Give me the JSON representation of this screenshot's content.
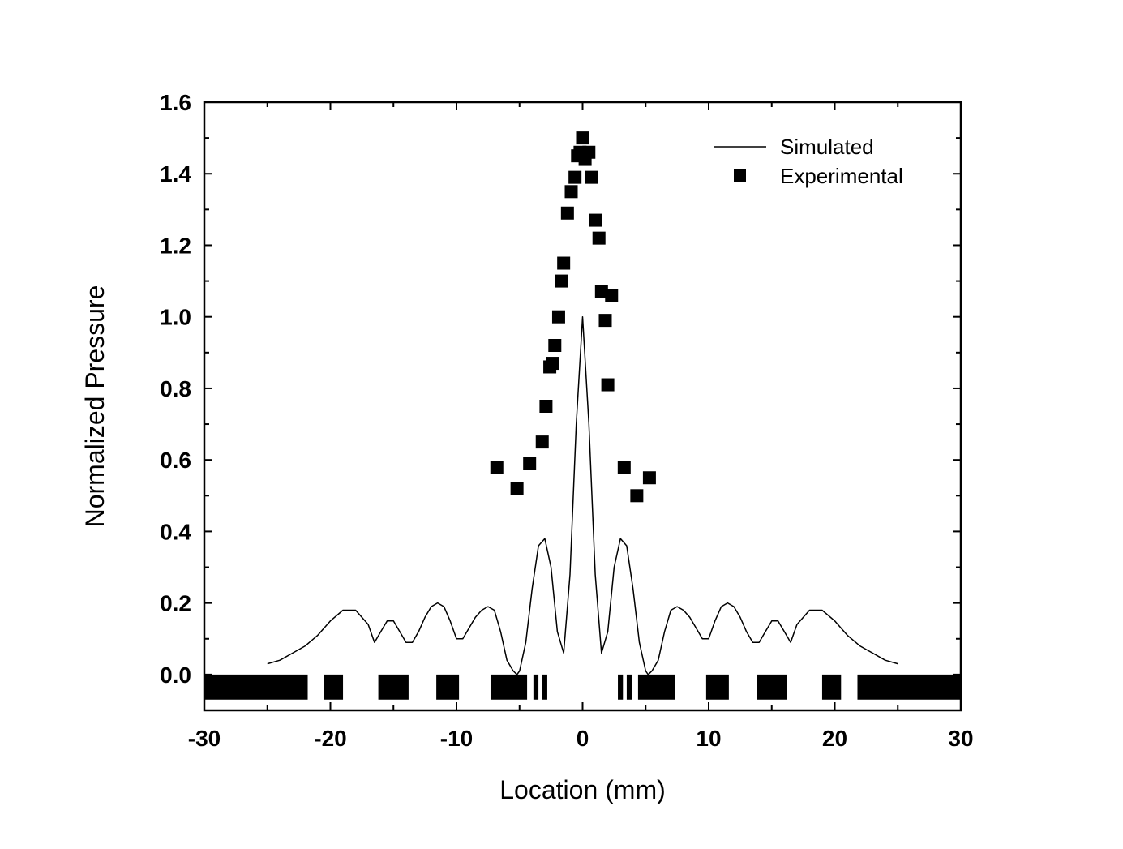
{
  "chart_data": {
    "type": "line",
    "title": "",
    "xlabel": "Location (mm)",
    "ylabel": "Normalized Pressure",
    "xlim": [
      -30,
      30
    ],
    "ylim": [
      -0.1,
      1.6
    ],
    "xticks": [
      -30,
      -20,
      -10,
      0,
      10,
      20,
      30
    ],
    "xtick_labels": [
      "-30",
      "-20",
      "-10",
      "0",
      "10",
      "20",
      "30"
    ],
    "yticks": [
      0.0,
      0.2,
      0.4,
      0.6,
      0.8,
      1.0,
      1.2,
      1.4,
      1.6
    ],
    "ytick_labels": [
      "0.0",
      "0.2",
      "0.4",
      "0.6",
      "0.8",
      "1.0",
      "1.2",
      "1.4",
      "1.6"
    ],
    "grid": false,
    "legend_position": "top-right",
    "series": [
      {
        "name": "Simulated",
        "kind": "line",
        "color": "#000000",
        "x": [
          -25,
          -24,
          -23,
          -22,
          -21,
          -20,
          -19,
          -18,
          -17,
          -16.5,
          -16,
          -15.5,
          -15,
          -14.5,
          -14,
          -13.5,
          -13,
          -12.5,
          -12,
          -11.5,
          -11,
          -10.5,
          -10,
          -9.5,
          -9,
          -8.5,
          -8,
          -7.5,
          -7,
          -6.5,
          -6,
          -5.5,
          -5.2,
          -5,
          -4.5,
          -4,
          -3.5,
          -3,
          -2.5,
          -2,
          -1.5,
          -1,
          -0.5,
          0,
          0.5,
          1,
          1.5,
          2,
          2.5,
          3,
          3.5,
          4,
          4.5,
          5,
          5.2,
          5.5,
          6,
          6.5,
          7,
          7.5,
          8,
          8.5,
          9,
          9.5,
          10,
          10.5,
          11,
          11.5,
          12,
          12.5,
          13,
          13.5,
          14,
          14.5,
          15,
          15.5,
          16,
          16.5,
          17,
          18,
          19,
          20,
          21,
          22,
          23,
          24,
          25
        ],
        "y": [
          0.03,
          0.04,
          0.06,
          0.08,
          0.11,
          0.15,
          0.18,
          0.18,
          0.14,
          0.09,
          0.12,
          0.15,
          0.15,
          0.12,
          0.09,
          0.09,
          0.12,
          0.16,
          0.19,
          0.2,
          0.19,
          0.15,
          0.1,
          0.1,
          0.13,
          0.16,
          0.18,
          0.19,
          0.18,
          0.12,
          0.04,
          0.01,
          0.0,
          0.01,
          0.09,
          0.24,
          0.36,
          0.38,
          0.3,
          0.12,
          0.06,
          0.28,
          0.7,
          1.0,
          0.7,
          0.28,
          0.06,
          0.12,
          0.3,
          0.38,
          0.36,
          0.24,
          0.09,
          0.01,
          0.0,
          0.01,
          0.04,
          0.12,
          0.18,
          0.19,
          0.18,
          0.16,
          0.13,
          0.1,
          0.1,
          0.15,
          0.19,
          0.2,
          0.19,
          0.16,
          0.12,
          0.09,
          0.09,
          0.12,
          0.15,
          0.15,
          0.12,
          0.09,
          0.14,
          0.18,
          0.18,
          0.15,
          0.11,
          0.08,
          0.06,
          0.04,
          0.03
        ]
      },
      {
        "name": "Experimental",
        "kind": "scatter",
        "marker": "square",
        "color": "#000000",
        "x": [
          -6.8,
          -5.2,
          -4.2,
          -3.2,
          -2.9,
          -2.6,
          -2.4,
          -2.2,
          -1.9,
          -1.7,
          -1.5,
          -1.2,
          -0.9,
          -0.6,
          -0.4,
          -0.2,
          0.0,
          0.2,
          0.5,
          0.7,
          1.0,
          1.3,
          1.5,
          1.8,
          2.0,
          2.3,
          3.3,
          4.3,
          5.3
        ],
        "y": [
          0.58,
          0.52,
          0.59,
          0.65,
          0.75,
          0.86,
          0.87,
          0.92,
          1.0,
          1.1,
          1.15,
          1.29,
          1.35,
          1.39,
          1.45,
          1.46,
          1.5,
          1.44,
          1.46,
          1.39,
          1.27,
          1.22,
          1.07,
          0.99,
          0.81,
          1.06,
          0.58,
          0.5,
          0.55
        ]
      }
    ],
    "transducer_bars_x_ranges": [
      [
        -30,
        -21.8
      ],
      [
        -20.5,
        -19.0
      ],
      [
        -16.2,
        -13.8
      ],
      [
        -11.6,
        -9.8
      ],
      [
        -7.3,
        -4.4
      ],
      [
        -3.9,
        -3.5
      ],
      [
        -3.2,
        -2.8
      ],
      [
        2.8,
        3.2
      ],
      [
        3.5,
        3.9
      ],
      [
        4.4,
        7.3
      ],
      [
        9.8,
        11.6
      ],
      [
        13.8,
        16.2
      ],
      [
        19.0,
        20.5
      ],
      [
        21.8,
        30
      ]
    ],
    "transducer_bars_y_range": [
      -0.07,
      0.0
    ]
  }
}
